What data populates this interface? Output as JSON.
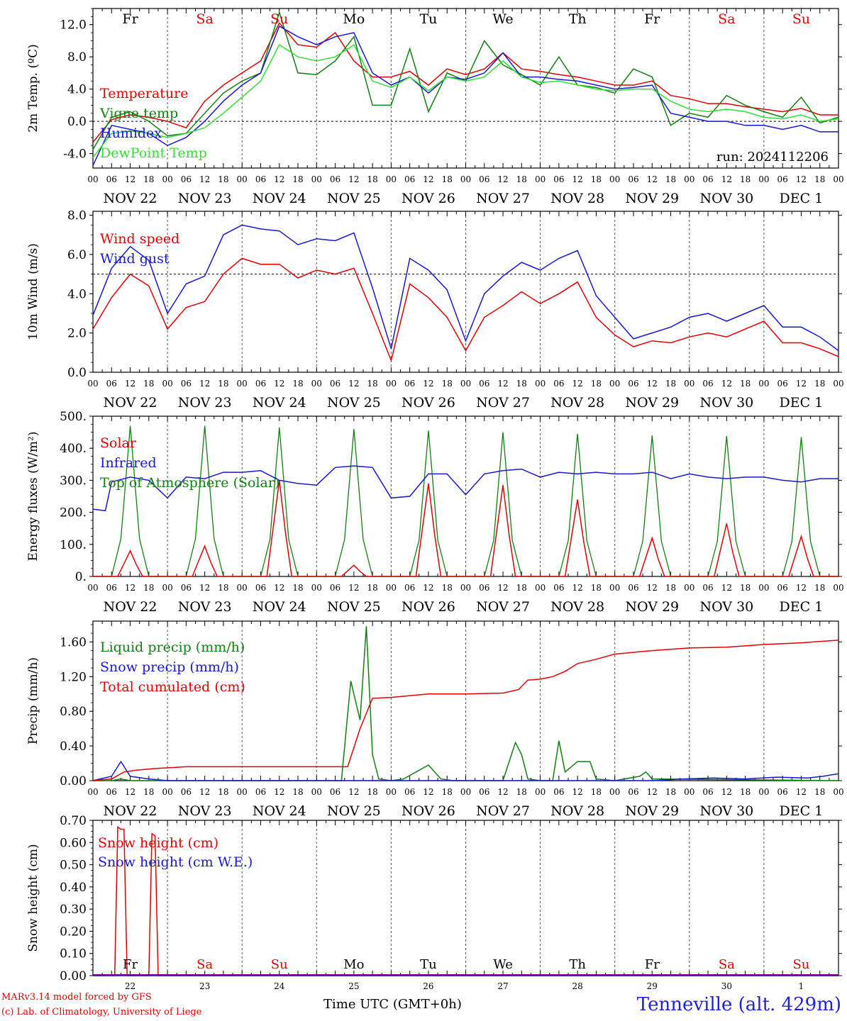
{
  "run_label": "run: 2024112206",
  "footer": {
    "model": "MARv3.14 model forced by GFS",
    "lab": "(c) Lab. of Climatology, University of Liege",
    "xaxis_label": "Time UTC (GMT+0h)",
    "location": "Tenneville (alt. 429m)"
  },
  "colors": {
    "red": "#e00000",
    "green": "#108010",
    "blue": "#1818d0",
    "lightgreen": "#30e030",
    "dash": "#555555",
    "purple": "#800080"
  },
  "day_labels": [
    "Fr",
    "Sa",
    "Su",
    "Mo",
    "Tu",
    "We",
    "Th",
    "Fr",
    "Sa",
    "Su"
  ],
  "day_label_colors": [
    "black",
    "red",
    "red",
    "black",
    "black",
    "black",
    "black",
    "black",
    "red",
    "red"
  ],
  "date_labels": [
    "NOV 22",
    "NOV 23",
    "NOV 24",
    "NOV 25",
    "NOV 26",
    "NOV 27",
    "NOV 28",
    "NOV 29",
    "NOV 30",
    "DEC  1"
  ],
  "hour_ticks": [
    "00",
    "06",
    "12",
    "18"
  ],
  "bottom_day_numbers": [
    "22",
    "23",
    "24",
    "25",
    "26",
    "27",
    "28",
    "29",
    "30",
    "1"
  ],
  "chart_data": [
    {
      "type": "line",
      "ylabel": "2m Temp. (ºC)",
      "ylim": [
        -5.8,
        14.0
      ],
      "yticks": [
        "-4.0",
        "0.0",
        "4.0",
        "8.0",
        "12.0"
      ],
      "ytick_values": [
        -4,
        0,
        4,
        8,
        12
      ],
      "hline": 0,
      "x_hours": [
        0,
        6,
        12,
        18,
        24,
        30,
        36,
        42,
        48,
        54,
        60,
        66,
        72,
        78,
        84,
        90,
        96,
        102,
        108,
        114,
        120,
        126,
        132,
        138,
        144,
        150,
        156,
        162,
        168,
        174,
        180,
        186,
        192,
        198,
        204,
        210,
        216,
        222,
        228,
        234,
        240
      ],
      "series": [
        {
          "name": "Temperature",
          "color": "red",
          "values": [
            -2.6,
            0.2,
            0.8,
            0.5,
            0.0,
            -0.8,
            2.5,
            4.5,
            6.0,
            7.5,
            12.2,
            9.5,
            9.2,
            11.0,
            7.5,
            5.5,
            5.5,
            6.2,
            4.5,
            6.5,
            5.8,
            6.5,
            8.5,
            6.5,
            6.2,
            5.8,
            5.5,
            5.0,
            4.5,
            4.5,
            5.0,
            3.2,
            2.8,
            2.2,
            2.2,
            1.8,
            1.5,
            1.2,
            1.6,
            0.8,
            0.8
          ]
        },
        {
          "name": "Vigne temp",
          "color": "green",
          "values": [
            -3.5,
            0.5,
            1.2,
            0.0,
            -1.8,
            -1.5,
            1.0,
            3.5,
            5.0,
            6.0,
            13.5,
            6.0,
            5.8,
            7.5,
            10.5,
            2.0,
            2.0,
            9.0,
            1.2,
            6.0,
            5.0,
            10.0,
            7.0,
            5.8,
            4.5,
            8.0,
            4.5,
            4.2,
            3.5,
            6.5,
            5.5,
            -0.5,
            1.0,
            0.5,
            3.2,
            2.0,
            1.2,
            0.5,
            3.0,
            -0.2,
            0.5
          ]
        },
        {
          "name": "Humidex",
          "color": "blue",
          "values": [
            -5.5,
            -0.5,
            -1.0,
            -1.5,
            -3.0,
            -2.0,
            0.0,
            2.5,
            4.5,
            6.0,
            11.8,
            10.5,
            9.5,
            10.5,
            11.0,
            6.0,
            4.5,
            5.5,
            3.5,
            5.5,
            5.2,
            6.0,
            8.5,
            5.5,
            5.5,
            5.2,
            5.0,
            4.5,
            4.0,
            4.2,
            4.5,
            1.0,
            0.5,
            0.0,
            0.0,
            -0.5,
            -0.5,
            -1.0,
            -0.5,
            -1.3,
            -1.3
          ]
        },
        {
          "name": "DewPoint Temp",
          "color": "lightgreen",
          "values": [
            -4.5,
            -1.5,
            -1.2,
            -1.5,
            -2.0,
            -1.5,
            -0.8,
            1.0,
            3.0,
            5.0,
            9.5,
            8.0,
            7.5,
            8.0,
            9.5,
            5.0,
            4.2,
            5.5,
            3.8,
            5.5,
            5.0,
            5.5,
            7.5,
            5.5,
            4.8,
            5.0,
            4.5,
            4.0,
            3.8,
            4.0,
            4.0,
            2.5,
            1.5,
            1.2,
            1.5,
            1.2,
            0.5,
            0.3,
            0.8,
            0.0,
            0.3
          ]
        }
      ]
    },
    {
      "type": "line",
      "ylabel": "10m Wind (m/s)",
      "ylim": [
        0,
        8.2
      ],
      "yticks": [
        "0.0",
        "2.0",
        "4.0",
        "6.0",
        "8.0"
      ],
      "ytick_values": [
        0,
        2,
        4,
        6,
        8
      ],
      "hline": 5,
      "x_hours": [
        0,
        6,
        12,
        18,
        24,
        30,
        36,
        42,
        48,
        54,
        60,
        66,
        72,
        78,
        84,
        90,
        96,
        102,
        108,
        114,
        120,
        126,
        132,
        138,
        144,
        150,
        156,
        162,
        168,
        174,
        180,
        186,
        192,
        198,
        204,
        210,
        216,
        222,
        228,
        234,
        240
      ],
      "series": [
        {
          "name": "Wind speed",
          "color": "red",
          "values": [
            2.2,
            3.8,
            5.0,
            4.4,
            2.2,
            3.3,
            3.6,
            5.0,
            5.8,
            5.5,
            5.5,
            4.8,
            5.2,
            5.0,
            5.3,
            3.0,
            0.6,
            4.5,
            3.8,
            2.8,
            1.1,
            2.8,
            3.4,
            4.1,
            3.5,
            4.0,
            4.6,
            2.8,
            1.9,
            1.3,
            1.6,
            1.5,
            1.8,
            2.0,
            1.8,
            2.2,
            2.6,
            1.5,
            1.5,
            1.2,
            0.8
          ]
        },
        {
          "name": "Wind gust",
          "color": "blue",
          "values": [
            2.9,
            5.3,
            6.4,
            5.7,
            3.0,
            4.5,
            4.9,
            7.0,
            7.5,
            7.3,
            7.2,
            6.5,
            6.8,
            6.7,
            7.1,
            4.3,
            1.2,
            5.8,
            5.2,
            4.2,
            1.6,
            4.0,
            4.9,
            5.6,
            5.2,
            5.8,
            6.2,
            3.9,
            2.8,
            1.7,
            2.0,
            2.3,
            2.8,
            3.0,
            2.6,
            3.0,
            3.4,
            2.3,
            2.3,
            1.8,
            1.1
          ]
        }
      ]
    },
    {
      "type": "line",
      "ylabel": "Energy fluxes (W/m²)",
      "ylim": [
        0,
        500
      ],
      "yticks": [
        "0.",
        "100.",
        "200.",
        "300.",
        "400.",
        "500."
      ],
      "ytick_values": [
        0,
        100,
        200,
        300,
        400,
        500
      ],
      "daily_peaks": {
        "Solar": [
          80,
          95,
          300,
          35,
          290,
          285,
          240,
          120,
          165,
          125
        ],
        "Top of Atmosphere (Solar)": [
          470,
          470,
          465,
          460,
          455,
          450,
          445,
          440,
          438,
          435
        ]
      },
      "series": [
        {
          "name": "Infrared",
          "color": "blue",
          "x_hours": [
            0,
            4,
            6,
            12,
            18,
            24,
            30,
            36,
            42,
            48,
            54,
            60,
            66,
            72,
            78,
            84,
            90,
            96,
            102,
            108,
            114,
            120,
            126,
            132,
            138,
            144,
            150,
            156,
            162,
            168,
            174,
            180,
            186,
            192,
            198,
            204,
            210,
            216,
            222,
            228,
            234,
            240
          ],
          "values": [
            210,
            205,
            295,
            310,
            300,
            245,
            310,
            305,
            325,
            325,
            330,
            300,
            290,
            285,
            340,
            345,
            340,
            245,
            250,
            320,
            320,
            255,
            320,
            330,
            335,
            310,
            325,
            320,
            325,
            320,
            320,
            325,
            305,
            320,
            310,
            305,
            310,
            310,
            300,
            295,
            305,
            305
          ]
        }
      ]
    },
    {
      "type": "line",
      "ylabel": "Precip (mm/h)",
      "ylim": [
        0,
        1.84
      ],
      "yticks": [
        "0.00",
        "0.40",
        "0.80",
        "1.20",
        "1.60"
      ],
      "ytick_values": [
        0,
        0.4,
        0.8,
        1.2,
        1.6
      ],
      "series": [
        {
          "name": "Liquid precip (mm/h)",
          "color": "green",
          "x_hours": [
            0,
            6,
            9,
            12,
            24,
            72,
            80,
            83,
            86,
            88,
            90,
            92,
            96,
            100,
            108,
            112,
            116,
            120,
            132,
            136,
            138,
            140,
            144,
            148,
            150,
            152,
            156,
            160,
            162,
            168,
            176,
            178,
            180,
            240
          ],
          "values": [
            0,
            0,
            0.02,
            0,
            0,
            0,
            0,
            1.15,
            0.7,
            1.78,
            0.3,
            0.02,
            0,
            0.02,
            0.18,
            0.02,
            0,
            0,
            0,
            0.44,
            0.3,
            0.02,
            0,
            0,
            0.46,
            0.1,
            0.22,
            0.22,
            0.02,
            0,
            0.05,
            0.1,
            0.02,
            0
          ]
        },
        {
          "name": "Snow precip (mm/h)",
          "color": "blue",
          "x_hours": [
            0,
            6,
            9,
            12,
            18,
            24,
            180,
            190,
            200,
            210,
            220,
            230,
            235,
            240
          ],
          "values": [
            0,
            0.05,
            0.22,
            0.05,
            0.02,
            0,
            0,
            0.02,
            0.03,
            0.02,
            0.04,
            0.03,
            0.05,
            0.08
          ]
        },
        {
          "name": "Total cumulated (cm)",
          "color": "red",
          "x_hours": [
            0,
            6,
            10,
            14,
            20,
            30,
            48,
            60,
            72,
            82,
            86,
            90,
            96,
            108,
            120,
            132,
            137,
            140,
            144,
            148,
            152,
            156,
            162,
            168,
            180,
            192,
            204,
            216,
            228,
            240
          ],
          "values": [
            0,
            0.02,
            0.1,
            0.12,
            0.14,
            0.16,
            0.16,
            0.16,
            0.16,
            0.16,
            0.6,
            0.95,
            0.96,
            1.0,
            1.0,
            1.01,
            1.05,
            1.16,
            1.17,
            1.2,
            1.26,
            1.35,
            1.4,
            1.46,
            1.5,
            1.53,
            1.54,
            1.57,
            1.59,
            1.62
          ]
        }
      ]
    },
    {
      "type": "line",
      "ylabel": "Snow height (cm)",
      "ylim": [
        0,
        0.7
      ],
      "yticks": [
        "0.00",
        "0.10",
        "0.20",
        "0.30",
        "0.40",
        "0.50",
        "0.60",
        "0.70"
      ],
      "ytick_values": [
        0,
        0.1,
        0.2,
        0.3,
        0.4,
        0.5,
        0.6,
        0.7
      ],
      "series": [
        {
          "name": "Snow height (cm)",
          "color": "red",
          "x_hours": [
            0,
            7,
            8,
            9,
            10,
            11,
            18,
            19,
            20,
            21,
            22,
            240
          ],
          "values": [
            0,
            0,
            0.67,
            0.66,
            0.66,
            0,
            0,
            0.64,
            0.63,
            0,
            0,
            0
          ]
        },
        {
          "name": "Snow height (cm W.E.)",
          "color": "blue",
          "x_hours": [
            0,
            240
          ],
          "values": [
            0,
            0
          ]
        }
      ]
    }
  ]
}
